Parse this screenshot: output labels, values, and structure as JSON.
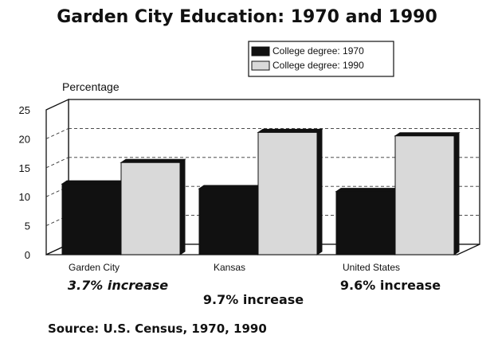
{
  "chart_data": {
    "type": "bar",
    "title": "Garden City Education: 1970 and 1990",
    "ylabel": "Percentage",
    "xlabel": "",
    "ylim": [
      0,
      25
    ],
    "yticks": [
      0,
      5,
      10,
      15,
      20,
      25
    ],
    "grid": true,
    "legend_position": "top-right",
    "categories": [
      "Garden City",
      "Kansas",
      "United States"
    ],
    "series": [
      {
        "name": "College degree: 1970",
        "color": "#111111",
        "values": [
          12.2,
          11.4,
          10.9
        ]
      },
      {
        "name": "College degree: 1990",
        "color": "#d9d9d9",
        "values": [
          15.9,
          21.1,
          20.5
        ]
      }
    ],
    "annotations": [
      {
        "text": "3.7% increase",
        "category": "Garden City",
        "italic": true
      },
      {
        "text": "9.7% increase",
        "category": "Kansas",
        "italic": false
      },
      {
        "text": "9.6% increase",
        "category": "United States",
        "italic": false
      }
    ],
    "source": "Source: U.S. Census, 1970, 1990"
  }
}
